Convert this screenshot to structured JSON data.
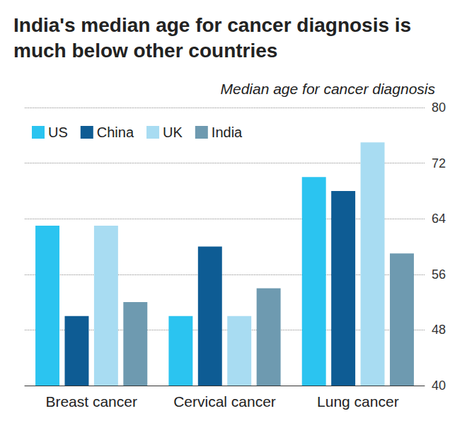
{
  "chart_data": {
    "type": "bar",
    "title": "India's median age for cancer diagnosis is much below other countries",
    "subtitle": "Median age for cancer diagnosis",
    "categories": [
      "Breast cancer",
      "Cervical cancer",
      "Lung cancer"
    ],
    "series": [
      {
        "name": "US",
        "color": "#2bc4f0",
        "values": [
          63,
          50,
          70
        ]
      },
      {
        "name": "China",
        "color": "#0e5c94",
        "values": [
          50,
          60,
          68
        ]
      },
      {
        "name": "UK",
        "color": "#a8dcf2",
        "values": [
          63,
          50,
          75
        ]
      },
      {
        "name": "India",
        "color": "#6e9ab0",
        "values": [
          52,
          54,
          59
        ]
      }
    ],
    "ylim": [
      40,
      80
    ],
    "yticks": [
      40,
      48,
      56,
      64,
      72,
      80
    ],
    "grid": true,
    "legend": "upper left"
  }
}
